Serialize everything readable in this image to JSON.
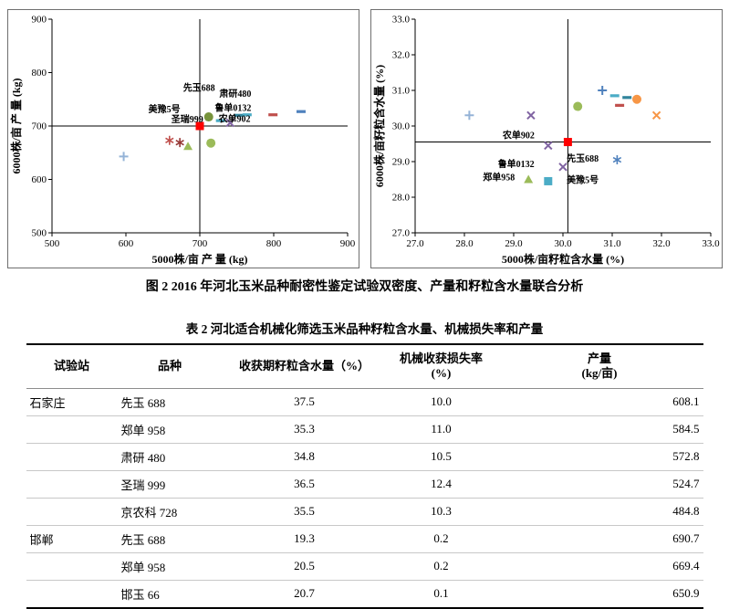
{
  "figure_caption": "图 2 2016 年河北玉米品种耐密性鉴定试验双密度、产量和籽粒含水量联合分析",
  "chart_data": [
    {
      "type": "scatter",
      "el": "chart-left-svg",
      "name": "dual-density-yield-scatter",
      "xlabel": "5000株/亩 产 量 (kg)",
      "ylabel": "6000株/亩 产 量 (kg)",
      "xlim": [
        500,
        900
      ],
      "ylim": [
        500,
        900
      ],
      "xticks": [
        {
          "v": 500,
          "t": "500"
        },
        {
          "v": 600,
          "t": "600"
        },
        {
          "v": 700,
          "t": "700"
        },
        {
          "v": 800,
          "t": "800"
        },
        {
          "v": 900,
          "t": "900"
        }
      ],
      "yticks": [
        {
          "v": 500,
          "t": "500"
        },
        {
          "v": 600,
          "t": "600"
        },
        {
          "v": 700,
          "t": "700"
        },
        {
          "v": 800,
          "t": "800"
        },
        {
          "v": 900,
          "t": "900"
        }
      ],
      "grid": false,
      "legend": "none",
      "crosshair": {
        "x": 700,
        "y": 700
      },
      "points": [
        {
          "x": 597,
          "y": 643,
          "m": "plus",
          "c": "#95B3D7"
        },
        {
          "x": 659,
          "y": 673,
          "m": "asterisk",
          "c": "#C0504D"
        },
        {
          "x": 673,
          "y": 669,
          "m": "asterisk",
          "c": "#953735"
        },
        {
          "x": 684,
          "y": 662,
          "m": "triangle",
          "c": "#9BBB59"
        },
        {
          "x": 700,
          "y": 700,
          "m": "square",
          "c": "#FF0000"
        },
        {
          "x": 715,
          "y": 668,
          "m": "circle",
          "c": "#9BBB59"
        },
        {
          "x": 712,
          "y": 717,
          "m": "circle",
          "c": "#77933C"
        },
        {
          "x": 728,
          "y": 710,
          "m": "dash",
          "c": "#4BACC6"
        },
        {
          "x": 741,
          "y": 706,
          "m": "x",
          "c": "#8064A2"
        },
        {
          "x": 753,
          "y": 720,
          "m": "dash",
          "c": "#31859C"
        },
        {
          "x": 764,
          "y": 721,
          "m": "dash",
          "c": "#4BACC6"
        },
        {
          "x": 799,
          "y": 721,
          "m": "dash",
          "c": "#C0504D"
        },
        {
          "x": 837,
          "y": 727,
          "m": "dash",
          "c": "#4F81BD"
        }
      ],
      "point_labels": [
        {
          "text": "先玉688",
          "x": 699,
          "y": 766
        },
        {
          "text": "肃研480",
          "x": 748,
          "y": 755
        },
        {
          "text": "美豫5号",
          "x": 652,
          "y": 726
        },
        {
          "text": "鲁单0132",
          "x": 745,
          "y": 728
        },
        {
          "text": "圣瑞999",
          "x": 683,
          "y": 707
        },
        {
          "text": "农单902",
          "x": 747,
          "y": 708
        }
      ]
    },
    {
      "type": "scatter",
      "el": "chart-right-svg",
      "name": "dual-density-moisture-scatter",
      "xlabel": "5000株/亩籽粒含水量 (%)",
      "ylabel": "6000株/亩籽粒含水量 (%)",
      "xlim": [
        27,
        33
      ],
      "ylim": [
        27,
        33
      ],
      "xticks": [
        {
          "v": 27,
          "t": "27.0"
        },
        {
          "v": 28,
          "t": "28.0"
        },
        {
          "v": 29,
          "t": "29.0"
        },
        {
          "v": 30,
          "t": "30.0"
        },
        {
          "v": 31,
          "t": "31.0"
        },
        {
          "v": 32,
          "t": "32.0"
        },
        {
          "v": 33,
          "t": "33.0"
        }
      ],
      "yticks": [
        {
          "v": 27,
          "t": "27.0"
        },
        {
          "v": 28,
          "t": "28.0"
        },
        {
          "v": 29,
          "t": "29.0"
        },
        {
          "v": 30,
          "t": "30.0"
        },
        {
          "v": 31,
          "t": "31.0"
        },
        {
          "v": 32,
          "t": "32.0"
        },
        {
          "v": 33,
          "t": "33.0"
        }
      ],
      "grid": false,
      "legend": "none",
      "crosshair": {
        "x": 30.1,
        "y": 29.55
      },
      "points": [
        {
          "x": 28.1,
          "y": 30.3,
          "m": "plus",
          "c": "#95B3D7"
        },
        {
          "x": 29.35,
          "y": 30.3,
          "m": "x",
          "c": "#8064A2"
        },
        {
          "x": 30.3,
          "y": 30.55,
          "m": "circle",
          "c": "#9BBB59"
        },
        {
          "x": 30.8,
          "y": 31.0,
          "m": "plus",
          "c": "#4F81BD"
        },
        {
          "x": 31.05,
          "y": 30.85,
          "m": "dash",
          "c": "#4BACC6"
        },
        {
          "x": 31.3,
          "y": 30.8,
          "m": "dash",
          "c": "#31859C"
        },
        {
          "x": 31.15,
          "y": 30.58,
          "m": "dash",
          "c": "#C0504D"
        },
        {
          "x": 31.5,
          "y": 30.75,
          "m": "circle",
          "c": "#F79646"
        },
        {
          "x": 31.9,
          "y": 30.3,
          "m": "x",
          "c": "#F79646"
        },
        {
          "x": 30.1,
          "y": 29.55,
          "m": "square",
          "c": "#FF0000"
        },
        {
          "x": 29.7,
          "y": 29.45,
          "m": "x",
          "c": "#8064A2"
        },
        {
          "x": 31.1,
          "y": 29.05,
          "m": "asterisk",
          "c": "#4F81BD"
        },
        {
          "x": 30.0,
          "y": 28.85,
          "m": "x",
          "c": "#8064A2"
        },
        {
          "x": 29.3,
          "y": 28.5,
          "m": "triangle",
          "c": "#9BBB59"
        },
        {
          "x": 29.7,
          "y": 28.45,
          "m": "square",
          "c": "#4BACC6"
        }
      ],
      "point_labels": [
        {
          "text": "农单902",
          "x": 29.1,
          "y": 29.65
        },
        {
          "text": "先玉688",
          "x": 30.4,
          "y": 29.0
        },
        {
          "text": "鲁单0132",
          "x": 29.05,
          "y": 28.85
        },
        {
          "text": "郑单958",
          "x": 28.7,
          "y": 28.48
        },
        {
          "text": "美豫5号",
          "x": 30.4,
          "y": 28.4
        }
      ]
    }
  ],
  "table": {
    "title": "表 2 河北适合机械化筛选玉米品种籽粒含水量、机械损失率和产量",
    "columns": [
      {
        "label": "试验站"
      },
      {
        "label": "品种"
      },
      {
        "label": "收获期籽粒含水量（%）"
      },
      {
        "label": "机械收获损失率(%)"
      },
      {
        "label": "产量",
        "sub": "(kg/亩)"
      }
    ],
    "rows": [
      [
        "石家庄",
        "先玉 688",
        "37.5",
        "10.0",
        "608.1"
      ],
      [
        "",
        "郑单 958",
        "35.3",
        "11.0",
        "584.5"
      ],
      [
        "",
        "肃研 480",
        "34.8",
        "10.5",
        "572.8"
      ],
      [
        "",
        "圣瑞 999",
        "36.5",
        "12.4",
        "524.7"
      ],
      [
        "",
        "京农科 728",
        "35.5",
        "10.3",
        "484.8"
      ],
      [
        "邯郸",
        "先玉 688",
        "19.3",
        "0.2",
        "690.7"
      ],
      [
        "",
        "郑单 958",
        "20.5",
        "0.2",
        "669.4"
      ],
      [
        "",
        "邯玉 66",
        "20.7",
        "0.1",
        "650.9"
      ]
    ]
  }
}
